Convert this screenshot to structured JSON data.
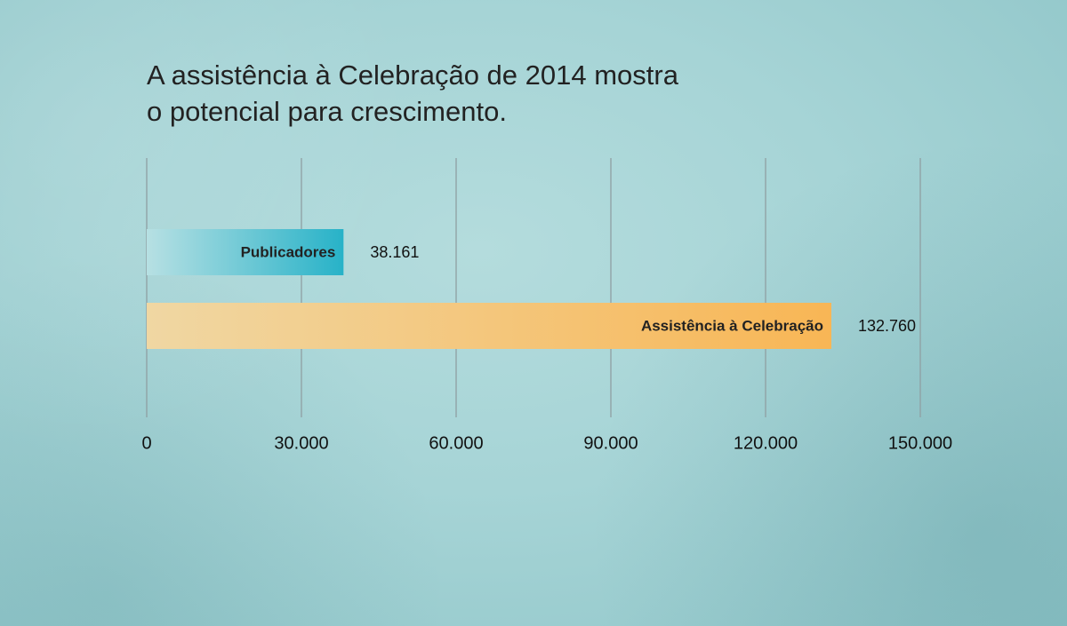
{
  "title_line1": "A assistência à Celebração de 2014 mostra",
  "title_line2": "o potencial para crescimento.",
  "chart_data": {
    "type": "bar",
    "orientation": "horizontal",
    "categories": [
      "Publicadores",
      "Assistência à Celebração"
    ],
    "values": [
      38161,
      132760
    ],
    "value_labels": [
      "38.161",
      "132.760"
    ],
    "xlim": [
      0,
      150000
    ],
    "ticks": [
      0,
      30000,
      60000,
      90000,
      120000,
      150000
    ],
    "tick_labels": [
      "0",
      "30.000",
      "60.000",
      "90.000",
      "120.000",
      "150.000"
    ],
    "grid": true,
    "colors": {
      "Publicadores": [
        "#b7e0e3",
        "#27b2c8"
      ],
      "Assistência à Celebração": [
        "#f0d7a3",
        "#f8b655"
      ]
    },
    "gridline_color": "#8f9fa2"
  }
}
